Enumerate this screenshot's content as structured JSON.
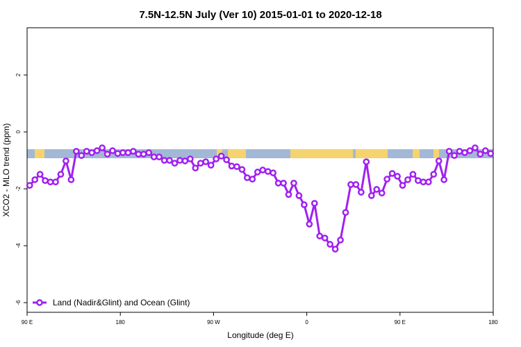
{
  "chart_data": {
    "type": "line",
    "title": "7.5N-12.5N July (Ver 10)   2015-01-01 to 2020-12-18",
    "x_label": "Longitude (deg E)",
    "y_label": "XCO2 - MLO trend (ppm)",
    "xlim": [
      90,
      540
    ],
    "ylim": [
      -6.34,
      3.66
    ],
    "xticks": [
      {
        "value": 90,
        "label": "90 E"
      },
      {
        "value": 180,
        "label": "180"
      },
      {
        "value": 270,
        "label": "90 W"
      },
      {
        "value": 360,
        "label": "0"
      },
      {
        "value": 450,
        "label": "90 E"
      },
      {
        "value": 540,
        "label": "180"
      }
    ],
    "yticks": [
      -6,
      -4,
      -2,
      0,
      2
    ],
    "legend": "bottom-left",
    "x": [
      92.5,
      97.5,
      102.5,
      107.5,
      112.5,
      117.5,
      122.5,
      127.5,
      132.5,
      137.5,
      142.5,
      147.5,
      152.5,
      157.5,
      162.5,
      167.5,
      172.5,
      177.5,
      182.5,
      187.5,
      192.5,
      197.5,
      202.5,
      207.5,
      212.5,
      217.5,
      222.5,
      227.5,
      232.5,
      237.5,
      242.5,
      247.5,
      252.5,
      257.5,
      262.5,
      267.5,
      272.5,
      277.5,
      282.5,
      287.5,
      292.5,
      297.5,
      302.5,
      307.5,
      312.5,
      317.5,
      322.5,
      327.5,
      332.5,
      337.5,
      342.5,
      347.5,
      352.5,
      357.5,
      362.5,
      367.5,
      372.5,
      377.5,
      382.5,
      387.5,
      392.5,
      397.5,
      402.5,
      407.5,
      412.5,
      417.5,
      422.5,
      427.5,
      432.5,
      437.5,
      442.5,
      447.5,
      452.5,
      457.5,
      462.5,
      467.5,
      472.5,
      477.5,
      482.5,
      487.5,
      492.5,
      497.5,
      502.5,
      507.5,
      512.5,
      517.5,
      522.5,
      527.5,
      532.5,
      537.5
    ],
    "series": [
      {
        "name": "Land (Nadir&Glint) and Ocean (Glint)",
        "color": "#a020f0",
        "values": [
          -1.88,
          -1.68,
          -1.49,
          -1.71,
          -1.76,
          -1.76,
          -1.49,
          -1.02,
          -1.68,
          -0.68,
          -0.83,
          -0.68,
          -0.73,
          -0.66,
          -0.56,
          -0.78,
          -0.66,
          -0.76,
          -0.73,
          -0.73,
          -0.68,
          -0.78,
          -0.78,
          -0.73,
          -0.88,
          -0.88,
          -1.0,
          -1.0,
          -1.1,
          -1.0,
          -1.02,
          -0.95,
          -1.27,
          -1.1,
          -1.05,
          -1.17,
          -0.95,
          -0.85,
          -0.98,
          -1.2,
          -1.22,
          -1.32,
          -1.61,
          -1.66,
          -1.41,
          -1.34,
          -1.39,
          -1.44,
          -1.8,
          -1.8,
          -2.2,
          -1.8,
          -2.24,
          -2.56,
          -3.24,
          -2.51,
          -3.66,
          -3.73,
          -3.95,
          -4.12,
          -3.8,
          -2.83,
          -1.85,
          -1.85,
          -2.12,
          -1.05,
          -2.24,
          -2.02,
          -2.15,
          -1.66,
          -1.46,
          -1.56,
          -1.88,
          -1.68,
          -1.49,
          -1.71,
          -1.76,
          -1.76,
          -1.49,
          -1.02,
          -1.68,
          -0.68,
          -0.83,
          -0.68,
          -0.73,
          -0.66,
          -0.56,
          -0.78,
          -0.66,
          -0.76
        ]
      }
    ]
  }
}
